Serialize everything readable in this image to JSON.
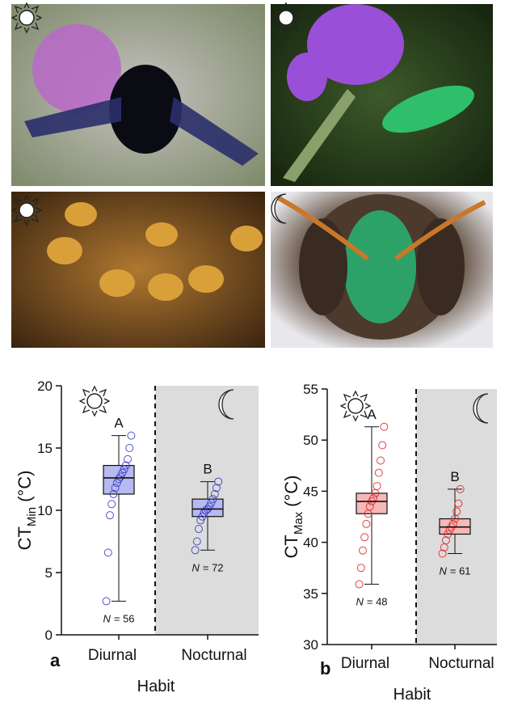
{
  "chart_data": [
    {
      "type": "box",
      "panel": "a",
      "ylabel": {
        "main": "CT",
        "sub": "Min",
        "unit": "(°C)"
      },
      "xlabel": "Habit",
      "categories": [
        "Diurnal",
        "Nocturnal"
      ],
      "group_letters": [
        "A",
        "B"
      ],
      "n_labels": [
        {
          "symbol": "N",
          "text": "= 56"
        },
        {
          "symbol": "N",
          "text": "= 72"
        }
      ],
      "color": "#3434c0",
      "fill": "#b6baf0",
      "shade_color": "#dcdcdc",
      "boxes": [
        {
          "min": 2.7,
          "q1": 11.3,
          "median": 12.6,
          "q3": 13.6,
          "max": 16.0,
          "points": [
            2.7,
            6.6,
            9.6,
            10.5,
            11.3,
            11.8,
            12.2,
            12.5,
            12.7,
            13.0,
            13.3,
            13.6,
            14.1,
            15.0,
            16.0
          ]
        },
        {
          "min": 6.8,
          "q1": 9.5,
          "median": 10.1,
          "q3": 10.9,
          "max": 12.3,
          "points": [
            6.8,
            7.5,
            8.5,
            9.2,
            9.5,
            9.8,
            10.0,
            10.1,
            10.3,
            10.6,
            10.9,
            11.3,
            11.8,
            12.3
          ]
        }
      ],
      "ylim": [
        0,
        20
      ],
      "yticks": [
        0,
        5,
        10,
        15,
        20
      ]
    },
    {
      "type": "box",
      "panel": "b",
      "ylabel": {
        "main": "CT",
        "sub": "Max",
        "unit": "(°C)"
      },
      "xlabel": "Habit",
      "categories": [
        "Diurnal",
        "Nocturnal"
      ],
      "group_letters": [
        "A",
        "B"
      ],
      "n_labels": [
        {
          "symbol": "N",
          "text": "= 48"
        },
        {
          "symbol": "N",
          "text": "= 61"
        }
      ],
      "color": "#e01e1e",
      "fill": "#f6b8b8",
      "shade_color": "#dcdcdc",
      "boxes": [
        {
          "min": 35.9,
          "q1": 42.8,
          "median": 44.0,
          "q3": 44.8,
          "max": 51.3,
          "points": [
            35.9,
            37.5,
            39.2,
            40.5,
            41.8,
            42.8,
            43.5,
            44.0,
            44.3,
            44.8,
            45.5,
            46.8,
            48.0,
            49.5,
            51.3
          ]
        },
        {
          "min": 38.9,
          "q1": 40.8,
          "median": 41.5,
          "q3": 42.3,
          "max": 45.2,
          "points": [
            38.9,
            39.5,
            40.2,
            40.8,
            41.2,
            41.5,
            41.8,
            42.3,
            43.0,
            43.8,
            45.2
          ]
        }
      ],
      "ylim": [
        30,
        55
      ],
      "yticks": [
        30,
        35,
        40,
        45,
        50,
        55
      ]
    }
  ]
}
